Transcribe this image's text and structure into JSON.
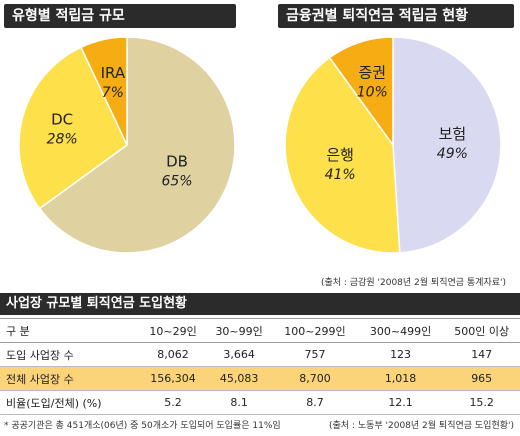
{
  "chart_data": [
    {
      "type": "pie",
      "title": "유형별 적립금 규모",
      "categories": [
        "DB",
        "DC",
        "IRA"
      ],
      "values": [
        65,
        28,
        7
      ],
      "value_labels": [
        "65%",
        "28%",
        "7%"
      ],
      "colors": [
        "#e0d2a0",
        "#fde04a",
        "#f6ad14"
      ]
    },
    {
      "type": "pie",
      "title": "금융권별 퇴직연금 적립금 현황",
      "categories": [
        "보험",
        "은행",
        "증권"
      ],
      "values": [
        49,
        41,
        10
      ],
      "value_labels": [
        "49%",
        "41%",
        "10%"
      ],
      "colors": [
        "#d9daf2",
        "#fde04a",
        "#f6ad14"
      ]
    },
    {
      "type": "table",
      "title": "사업장 규모별 퇴직연금 도입현황",
      "columns": [
        "구 분",
        "10~29인",
        "30~99인",
        "100~299인",
        "300~499인",
        "500인 이상"
      ],
      "rows": [
        [
          "도입 사업장 수",
          "8,062",
          "3,664",
          "757",
          "123",
          "147"
        ],
        [
          "전체 사업장 수",
          "156,304",
          "45,083",
          "8,700",
          "1,018",
          "965"
        ],
        [
          "비율(도입/전체) (%)",
          "5.2",
          "8.1",
          "8.7",
          "12.1",
          "15.2"
        ]
      ]
    }
  ],
  "source_top": "(출처 : 금감원 '2008년 2월 퇴직연금 통계자료')",
  "footnote_left": "* 공공기관은 총 451개소(06년) 중 50개소가 도입되어 도입률은 11%임",
  "footnote_right": "(출처 : 노동부 '2008년 2월 퇴직연금 도입현황')",
  "colors": {
    "header_bg": "#2b2b2b",
    "highlight_row": "#fbd47a"
  }
}
